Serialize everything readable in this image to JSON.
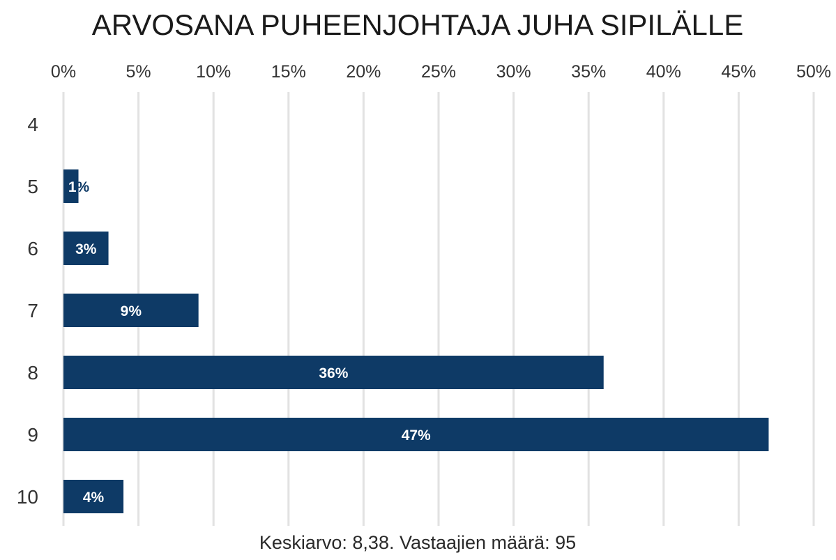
{
  "title": "ARVOSANA PUHEENJOHTAJA JUHA SIPILÄLLE",
  "footer": "Keskiarvo: 8,38. Vastaajien määrä: 95",
  "colors": {
    "bar": "#0e3a66",
    "bar_label": "#ffffff",
    "grid": "#e2e2e2",
    "text": "#333333"
  },
  "chart_data": {
    "type": "bar",
    "orientation": "horizontal",
    "title": "ARVOSANA PUHEENJOHTAJA JUHA SIPILÄLLE",
    "categories": [
      "4",
      "5",
      "6",
      "7",
      "8",
      "9",
      "10"
    ],
    "values": [
      0,
      1,
      3,
      9,
      36,
      47,
      4
    ],
    "data_labels": [
      "",
      "1%",
      "3%",
      "9%",
      "36%",
      "47%",
      "4%"
    ],
    "x_ticks": [
      "0%",
      "5%",
      "10%",
      "15%",
      "20%",
      "25%",
      "30%",
      "35%",
      "40%",
      "45%",
      "50%"
    ],
    "x_tick_values": [
      0,
      5,
      10,
      15,
      20,
      25,
      30,
      35,
      40,
      45,
      50
    ],
    "xlim": [
      0,
      50
    ],
    "x_axis_position": "top",
    "grid": true,
    "legend": "none",
    "note": "Keskiarvo: 8,38. Vastaajien määrä: 95"
  }
}
